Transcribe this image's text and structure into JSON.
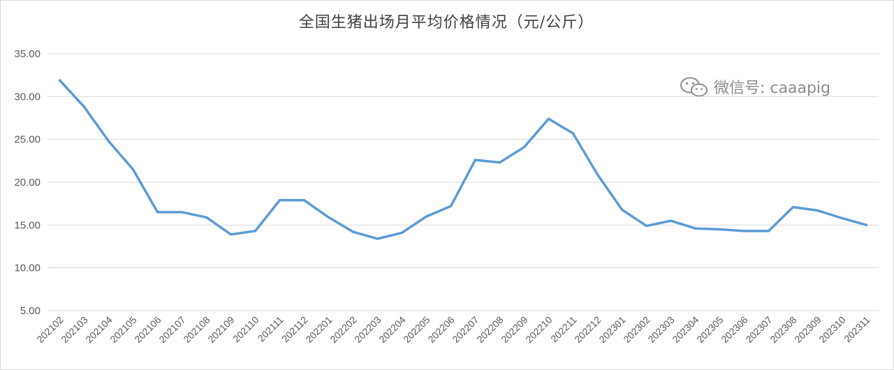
{
  "chart_data": {
    "type": "line",
    "title": "全国生猪出场月平均价格情况（元/公斤）",
    "watermark": "微信号: caaapig",
    "categories": [
      "202102",
      "202103",
      "202104",
      "202105",
      "202106",
      "202107",
      "202108",
      "202109",
      "202110",
      "202111",
      "202112",
      "202201",
      "202202",
      "202203",
      "202204",
      "202205",
      "202206",
      "202207",
      "202208",
      "202209",
      "202210",
      "202211",
      "202212",
      "202301",
      "202302",
      "202303",
      "202304",
      "202305",
      "202306",
      "202307",
      "202308",
      "202309",
      "202310",
      "202311"
    ],
    "series": [
      {
        "values": [
          31.9,
          28.8,
          24.8,
          21.5,
          16.5,
          16.5,
          15.9,
          13.9,
          14.3,
          17.9,
          17.9,
          15.9,
          14.2,
          13.4,
          14.1,
          16.0,
          17.2,
          22.6,
          22.3,
          24.1,
          27.4,
          25.7,
          20.9,
          16.8,
          14.9,
          15.5,
          14.6,
          14.5,
          14.3,
          14.3,
          17.1,
          16.7,
          15.8,
          15.0
        ],
        "color": "#5b9bd5"
      }
    ],
    "ylim": [
      5,
      35
    ],
    "yticks": [
      "5.00",
      "10.00",
      "15.00",
      "20.00",
      "25.00",
      "30.00",
      "35.00"
    ],
    "grid": true,
    "xlabel": "",
    "ylabel": ""
  }
}
